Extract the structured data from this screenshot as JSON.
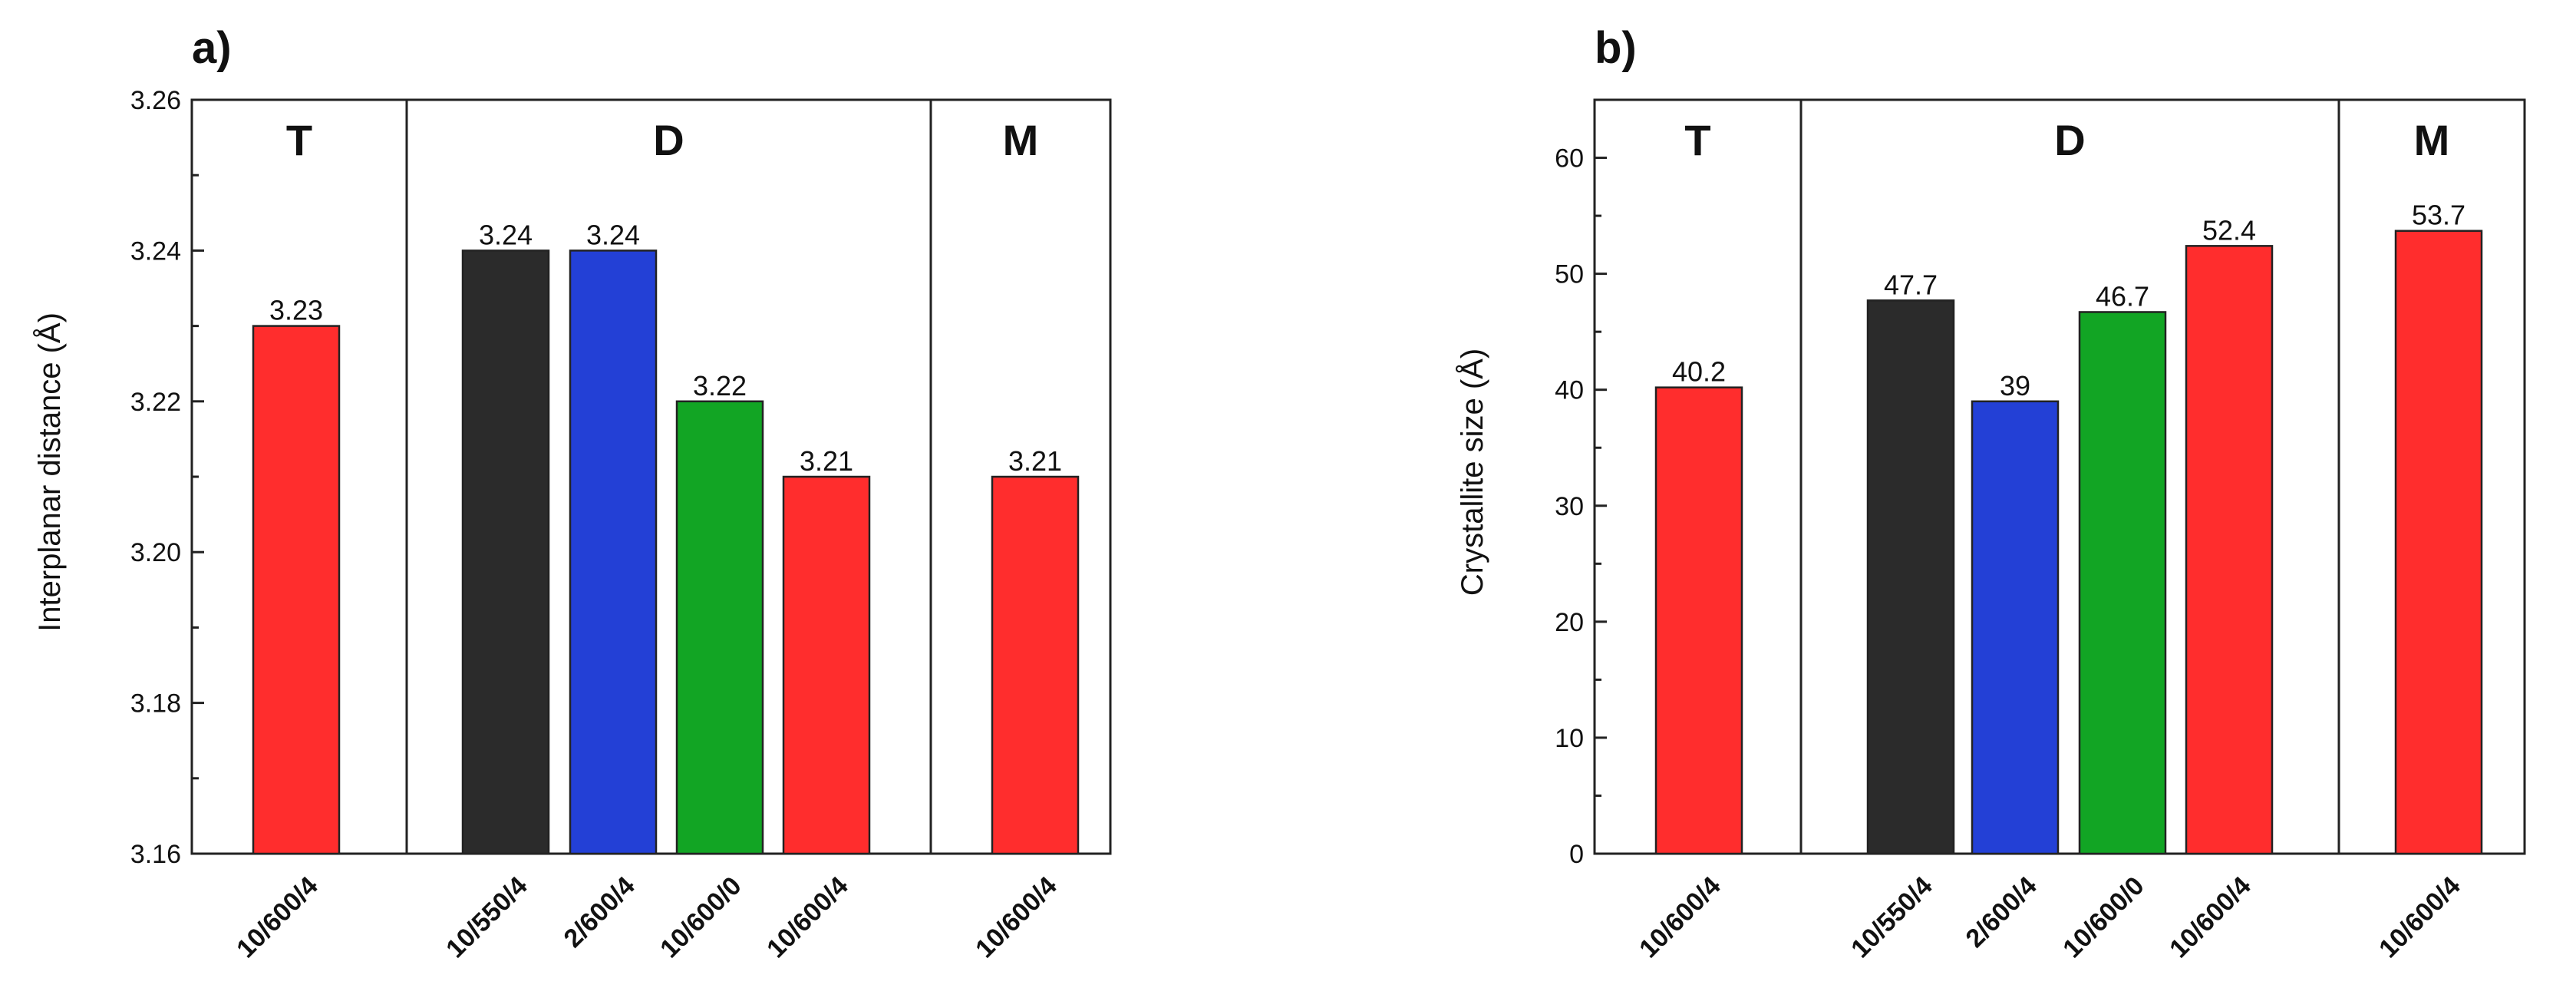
{
  "chart_data": [
    {
      "type": "bar",
      "panel_label": "a)",
      "ylabel": "Interplanar distance (Å)",
      "ylim": [
        3.16,
        3.26
      ],
      "yticks": [
        "3.16",
        "3.18",
        "3.20",
        "3.22",
        "3.24",
        "3.26"
      ],
      "groups": [
        {
          "label": "T",
          "categories": [
            "10/600/4"
          ],
          "values": [
            3.23
          ],
          "value_labels": [
            "3.23"
          ],
          "colors": [
            "#ff2d2d"
          ]
        },
        {
          "label": "D",
          "categories": [
            "10/550/4",
            "2/600/4",
            "10/600/0",
            "10/600/4"
          ],
          "values": [
            3.24,
            3.24,
            3.22,
            3.21
          ],
          "value_labels": [
            "3.24",
            "3.24",
            "3.22",
            "3.21"
          ],
          "colors": [
            "#2b2b2b",
            "#2340d6",
            "#12a524",
            "#ff2d2d"
          ]
        },
        {
          "label": "M",
          "categories": [
            "10/600/4"
          ],
          "values": [
            3.21
          ],
          "value_labels": [
            "3.21"
          ],
          "colors": [
            "#ff2d2d"
          ]
        }
      ]
    },
    {
      "type": "bar",
      "panel_label": "b)",
      "ylabel": "Crystallite size (Å)",
      "ylim": [
        0,
        65
      ],
      "yticks": [
        "0",
        "10",
        "20",
        "30",
        "40",
        "50",
        "60"
      ],
      "groups": [
        {
          "label": "T",
          "categories": [
            "10/600/4"
          ],
          "values": [
            40.2
          ],
          "value_labels": [
            "40.2"
          ],
          "colors": [
            "#ff2d2d"
          ]
        },
        {
          "label": "D",
          "categories": [
            "10/550/4",
            "2/600/4",
            "10/600/0",
            "10/600/4"
          ],
          "values": [
            47.7,
            39,
            46.7,
            52.4
          ],
          "value_labels": [
            "47.7",
            "39",
            "46.7",
            "52.4"
          ],
          "colors": [
            "#2b2b2b",
            "#2340d6",
            "#12a524",
            "#ff2d2d"
          ]
        },
        {
          "label": "M",
          "categories": [
            "10/600/4"
          ],
          "values": [
            53.7
          ],
          "value_labels": [
            "53.7"
          ],
          "colors": [
            "#ff2d2d"
          ]
        }
      ]
    }
  ]
}
